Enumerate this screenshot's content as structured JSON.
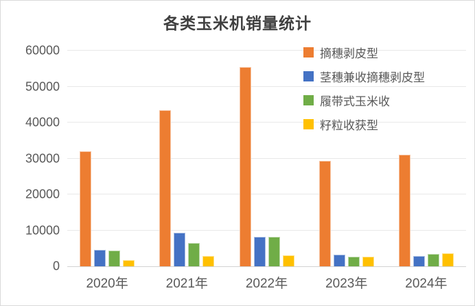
{
  "chart_data": {
    "type": "bar",
    "title": "各类玉米机销量统计",
    "categories": [
      "2020年",
      "2021年",
      "2022年",
      "2023年",
      "2024年"
    ],
    "series": [
      {
        "name": "摘穗剥皮型",
        "color": "#ED7D31",
        "values": [
          32000,
          43500,
          55500,
          29300,
          31000
        ]
      },
      {
        "name": "茎穗兼收摘穗剥皮型",
        "color": "#4472C4",
        "values": [
          4500,
          9300,
          8100,
          3200,
          2900
        ]
      },
      {
        "name": "履带式玉米收",
        "color": "#70AD47",
        "values": [
          4400,
          6500,
          8200,
          2600,
          3500
        ]
      },
      {
        "name": "籽粒收获型",
        "color": "#FFC000",
        "values": [
          1800,
          2900,
          3100,
          2600,
          3600
        ]
      }
    ],
    "xlabel": "",
    "ylabel": "",
    "ylim": [
      0,
      60000
    ],
    "yticks": [
      0,
      10000,
      20000,
      30000,
      40000,
      50000,
      60000
    ],
    "grid": "horizontal",
    "legend_position": "top-right-inside"
  }
}
